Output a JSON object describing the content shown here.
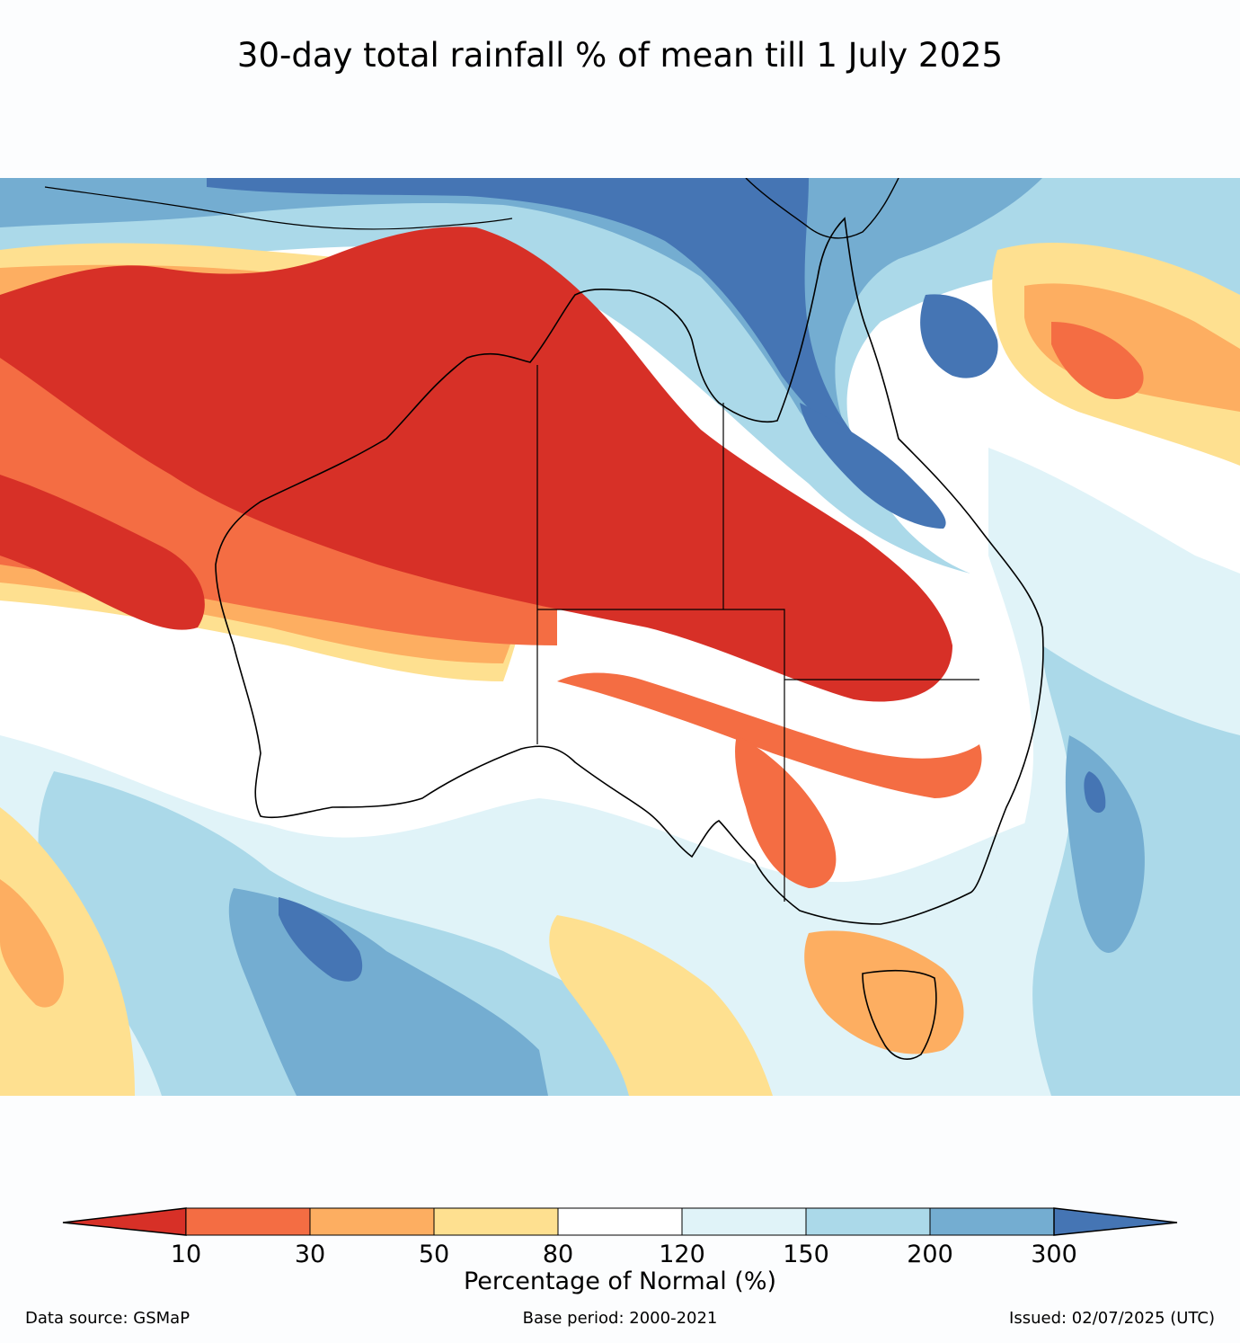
{
  "title": "30-day total rainfall % of mean till 1 July 2025",
  "colorbar": {
    "label": "Percentage of Normal (%)",
    "ticks": [
      "10",
      "30",
      "50",
      "80",
      "120",
      "150",
      "200",
      "300"
    ],
    "colors": {
      "below_10": "#d73027",
      "10_30": "#f46d43",
      "30_50": "#fdae61",
      "50_80": "#fee090",
      "80_120": "#ffffff",
      "120_150": "#e0f3f8",
      "150_200": "#abd9e9",
      "200_300": "#74add1",
      "above_300": "#4575b4"
    }
  },
  "footer": {
    "source": "Data source: GSMaP",
    "base_period": "Base period: 2000-2021",
    "issued": "Issued: 02/07/2025 (UTC)"
  }
}
